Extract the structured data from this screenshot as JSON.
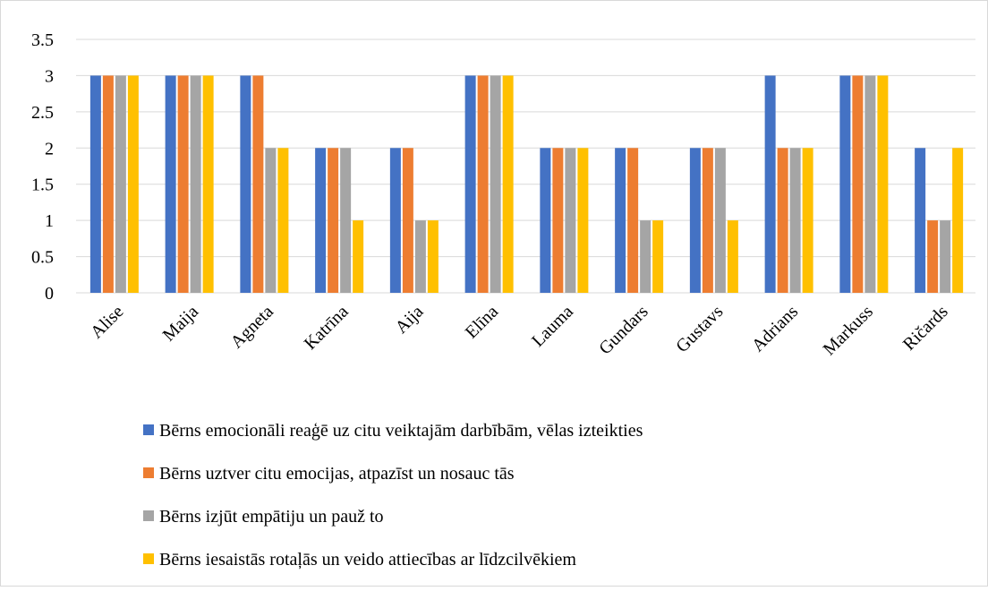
{
  "chart_data": {
    "type": "bar",
    "categories": [
      "Alise",
      "Maija",
      "Agneta",
      "Katrīna",
      "Aija",
      "Elīna",
      "Lauma",
      "Gundars",
      "Gustavs",
      "Adrians",
      "Markuss",
      "Ričards"
    ],
    "series": [
      {
        "name": "Bērns emocionāli reaģē uz citu veiktajām darbībām, vēlas izteikties",
        "color": "#4472c4",
        "values": [
          3,
          3,
          3,
          2,
          2,
          3,
          2,
          2,
          2,
          3,
          3,
          2
        ]
      },
      {
        "name": "Bērns uztver citu emocijas, atpazīst un nosauc tās",
        "color": "#ed7d31",
        "values": [
          3,
          3,
          3,
          2,
          2,
          3,
          2,
          2,
          2,
          2,
          3,
          1
        ]
      },
      {
        "name": "Bērns izjūt empātiju un pauž to",
        "color": "#a5a5a5",
        "values": [
          3,
          3,
          2,
          2,
          1,
          3,
          2,
          1,
          2,
          2,
          3,
          1
        ]
      },
      {
        "name": "Bērns iesaistās rotaļās un veido attiecības ar līdzcilvēkiem",
        "color": "#ffc000",
        "values": [
          3,
          3,
          2,
          1,
          1,
          3,
          2,
          1,
          1,
          2,
          3,
          2
        ]
      }
    ],
    "ylim": [
      0,
      3.5
    ],
    "yticks": [
      0,
      0.5,
      1,
      1.5,
      2,
      2.5,
      3,
      3.5
    ],
    "grid": true,
    "legend": "bottom"
  }
}
